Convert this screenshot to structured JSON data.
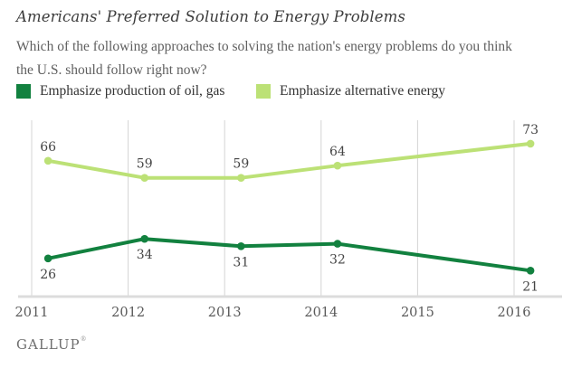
{
  "header": {
    "title": "Americans' Preferred Solution to Energy Problems",
    "subtitle_line1": "Which of the following approaches to solving the nation's energy problems do you think",
    "subtitle_line2": "the U.S. should follow right now?"
  },
  "legend": {
    "items": [
      {
        "label": "Emphasize production of oil, gas",
        "color": "#12813f"
      },
      {
        "label": "Emphasize alternative energy",
        "color": "#bce176"
      }
    ]
  },
  "chart_data": {
    "type": "line",
    "title": "Americans' Preferred Solution to Energy Problems",
    "subtitle": "Which of the following approaches to solving the nation's energy problems do you think the U.S. should follow right now?",
    "x": [
      2011,
      2012,
      2013,
      2014,
      2016
    ],
    "x_axis_ticks": [
      "2011",
      "2012",
      "2013",
      "2014",
      "2015",
      "2016"
    ],
    "series": [
      {
        "name": "Emphasize production of oil, gas",
        "color": "#12813f",
        "values": [
          26,
          34,
          31,
          32,
          21
        ],
        "label_position": "below"
      },
      {
        "name": "Emphasize alternative energy",
        "color": "#bce176",
        "values": [
          66,
          59,
          59,
          64,
          73
        ],
        "label_position": "above"
      }
    ],
    "point_labels_shown": true,
    "ylim": [
      10,
      82
    ],
    "grid": "vertical-only",
    "legend_position": "top-left",
    "colors": {
      "gridline": "#d4d4d4",
      "axis_line": "#dcdcdc",
      "tick_label": "#5a5a5a",
      "value_label": "#454545"
    }
  },
  "footer": {
    "logo": "GALLUP",
    "reg_mark": "®"
  }
}
